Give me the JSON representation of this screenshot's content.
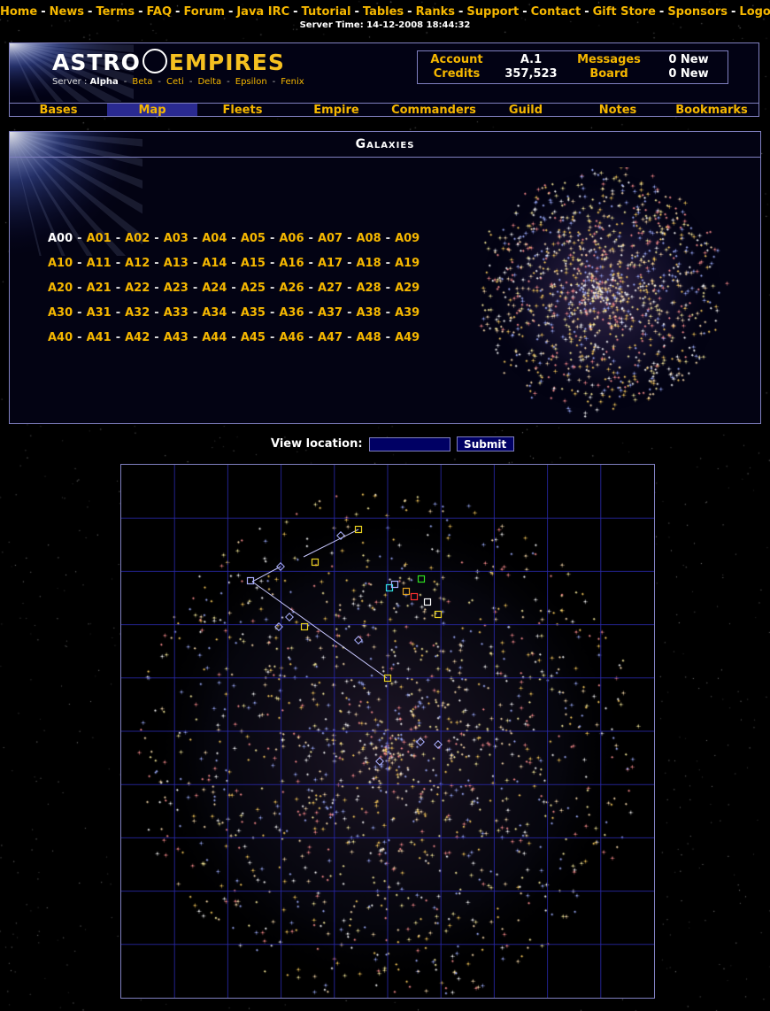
{
  "top_links": [
    {
      "label": "Home"
    },
    {
      "label": "News"
    },
    {
      "label": "Terms"
    },
    {
      "label": "FAQ"
    },
    {
      "label": "Forum"
    },
    {
      "label": "Java IRC"
    },
    {
      "label": "Tutorial"
    },
    {
      "label": "Tables"
    },
    {
      "label": "Ranks"
    },
    {
      "label": "Support"
    },
    {
      "label": "Contact"
    },
    {
      "label": "Gift Store"
    },
    {
      "label": "Sponsors"
    },
    {
      "label": "Logout"
    }
  ],
  "server_time": "Server Time: 14-12-2008 18:44:32",
  "logo": {
    "part1": "ASTRO",
    "part2": "EMPIRES"
  },
  "servers": {
    "label": "Server :",
    "current": "Alpha",
    "others": [
      "Beta",
      "Ceti",
      "Delta",
      "Epsilon",
      "Fenix"
    ]
  },
  "account": {
    "account_label": "Account",
    "account_value": "A.1",
    "messages_label": "Messages",
    "messages_value": "0 New",
    "credits_label": "Credits",
    "credits_value": "357,523",
    "board_label": "Board",
    "board_value": "0 New"
  },
  "nav": {
    "tabs": [
      {
        "label": "Bases"
      },
      {
        "label": "Map"
      },
      {
        "label": "Fleets"
      },
      {
        "label": "Empire"
      },
      {
        "label": "Commanders"
      },
      {
        "label": "Guild"
      },
      {
        "label": "Notes"
      },
      {
        "label": "Bookmarks"
      }
    ],
    "active": "Map"
  },
  "galaxies": {
    "title": "Galaxies",
    "current": "A00",
    "rows": [
      [
        "A00",
        "A01",
        "A02",
        "A03",
        "A04",
        "A05",
        "A06",
        "A07",
        "A08",
        "A09"
      ],
      [
        "A10",
        "A11",
        "A12",
        "A13",
        "A14",
        "A15",
        "A16",
        "A17",
        "A18",
        "A19"
      ],
      [
        "A20",
        "A21",
        "A22",
        "A23",
        "A24",
        "A25",
        "A26",
        "A27",
        "A28",
        "A29"
      ],
      [
        "A30",
        "A31",
        "A32",
        "A33",
        "A34",
        "A35",
        "A36",
        "A37",
        "A38",
        "A39"
      ],
      [
        "A40",
        "A41",
        "A42",
        "A43",
        "A44",
        "A45",
        "A46",
        "A47",
        "A48",
        "A49"
      ]
    ]
  },
  "view_location": {
    "label": "View location:",
    "value": "",
    "submit_label": "Submit"
  },
  "colors": {
    "gold": "#f5b700",
    "border": "#8080c0",
    "input_bg": "#000064",
    "nav_active": "#2a2a90"
  }
}
